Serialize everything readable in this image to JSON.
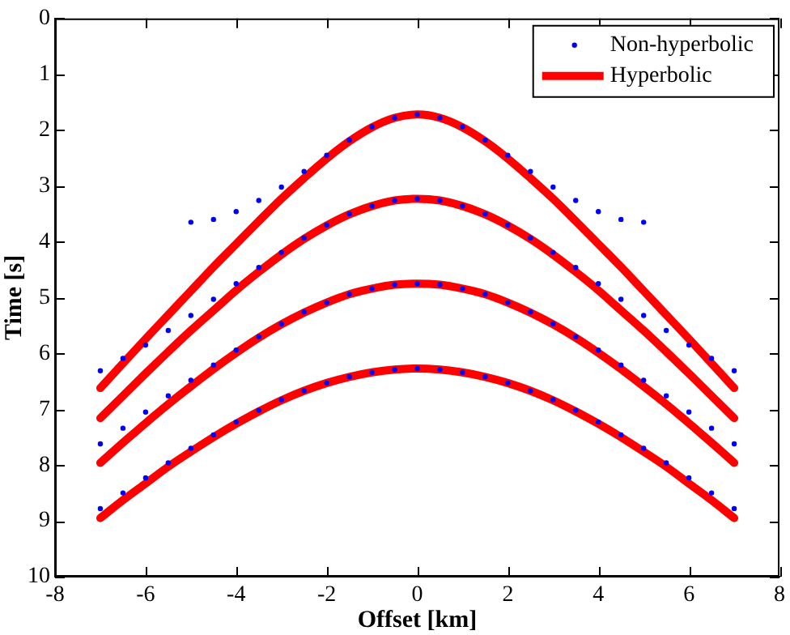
{
  "chart_data": {
    "type": "line",
    "xlabel": "Offset [km]",
    "ylabel": "Time [s]",
    "xlim": [
      -8,
      8
    ],
    "xticks": [
      -8,
      -6,
      -4,
      -2,
      0,
      2,
      4,
      6,
      8
    ],
    "ylim": [
      10,
      0
    ],
    "yticks": [
      0,
      1,
      2,
      3,
      4,
      5,
      6,
      7,
      8,
      9,
      10
    ],
    "grid": false,
    "legend": "top right",
    "series": [
      {
        "name": "Non-hyperbolic",
        "type": "scatter",
        "marker": "circle",
        "color": "#0000ff",
        "x": [
          -5,
          -4.5,
          -4,
          -3.5,
          -3,
          -2.5,
          -2,
          -1.5,
          -1,
          -0.5,
          0,
          0.5,
          1,
          1.5,
          2,
          2.5,
          3,
          3.5,
          4,
          4.5,
          5
        ],
        "values": [
          3.65,
          3.6,
          3.46,
          3.26,
          3.02,
          2.74,
          2.45,
          2.18,
          1.94,
          1.78,
          1.72,
          1.78,
          1.94,
          2.18,
          2.45,
          2.74,
          3.02,
          3.26,
          3.46,
          3.6,
          3.65
        ]
      },
      {
        "type": "scatter",
        "marker": "circle",
        "color": "#0000ff",
        "x": [
          -7,
          -6.5,
          -6,
          -5.5,
          -5,
          -4.5,
          -4,
          -3.5,
          -3,
          -2.5,
          -2,
          -1.5,
          -1,
          -0.5,
          0,
          0.5,
          1,
          1.5,
          2,
          2.5,
          3,
          3.5,
          4,
          4.5,
          5,
          5.5,
          6,
          6.5,
          7
        ],
        "values": [
          6.31,
          6.09,
          5.85,
          5.59,
          5.32,
          5.03,
          4.75,
          4.46,
          4.19,
          3.93,
          3.7,
          3.5,
          3.36,
          3.26,
          3.23,
          3.26,
          3.36,
          3.5,
          3.7,
          3.93,
          4.19,
          4.46,
          4.75,
          5.03,
          5.32,
          5.59,
          5.85,
          6.09,
          6.31
        ]
      },
      {
        "type": "scatter",
        "marker": "circle",
        "color": "#0000ff",
        "x": [
          -7,
          -6.5,
          -6,
          -5.5,
          -5,
          -4.5,
          -4,
          -3.5,
          -3,
          -2.5,
          -2,
          -1.5,
          -1,
          -0.5,
          0,
          0.5,
          1,
          1.5,
          2,
          2.5,
          3,
          3.5,
          4,
          4.5,
          5,
          5.5,
          6,
          6.5,
          7
        ],
        "values": [
          7.62,
          7.34,
          7.05,
          6.76,
          6.48,
          6.21,
          5.94,
          5.7,
          5.47,
          5.26,
          5.09,
          4.94,
          4.84,
          4.77,
          4.75,
          4.77,
          4.84,
          4.94,
          5.09,
          5.26,
          5.47,
          5.7,
          5.94,
          6.21,
          6.48,
          6.76,
          7.05,
          7.34,
          7.62
        ]
      },
      {
        "type": "scatter",
        "marker": "circle",
        "color": "#0000ff",
        "x": [
          -7,
          -6.5,
          -6,
          -5.5,
          -5,
          -4.5,
          -4,
          -3.5,
          -3,
          -2.5,
          -2,
          -1.5,
          -1,
          -0.5,
          0,
          0.5,
          1,
          1.5,
          2,
          2.5,
          3,
          3.5,
          4,
          4.5,
          5,
          5.5,
          6,
          6.5,
          7
        ],
        "values": [
          8.78,
          8.5,
          8.23,
          7.96,
          7.7,
          7.46,
          7.23,
          7.02,
          6.83,
          6.67,
          6.53,
          6.42,
          6.34,
          6.29,
          6.27,
          6.29,
          6.34,
          6.42,
          6.53,
          6.67,
          6.83,
          7.02,
          7.23,
          7.46,
          7.7,
          7.96,
          8.23,
          8.5,
          8.78
        ]
      },
      {
        "name": "Hyperbolic",
        "type": "line",
        "marker": "none",
        "line_style": "solid",
        "color": "#ff0000",
        "x": [
          -7,
          -6.5,
          -6,
          -5.5,
          -5,
          -4.5,
          -4,
          -3.5,
          -3,
          -2.5,
          -2,
          -1.5,
          -1,
          -0.5,
          0,
          0.5,
          1,
          1.5,
          2,
          2.5,
          3,
          3.5,
          4,
          4.5,
          5,
          5.5,
          6,
          6.5,
          7
        ],
        "values": [
          6.62,
          6.18,
          5.74,
          5.31,
          4.88,
          4.45,
          4.04,
          3.63,
          3.23,
          2.86,
          2.51,
          2.2,
          1.95,
          1.78,
          1.72,
          1.78,
          1.95,
          2.2,
          2.51,
          2.86,
          3.23,
          3.63,
          4.04,
          4.45,
          4.88,
          5.31,
          5.74,
          6.18,
          6.62
        ]
      },
      {
        "type": "line",
        "marker": "none",
        "line_style": "solid",
        "color": "#ff0000",
        "x": [
          -7,
          -6.5,
          -6,
          -5.5,
          -5,
          -4.5,
          -4,
          -3.5,
          -3,
          -2.5,
          -2,
          -1.5,
          -1,
          -0.5,
          0,
          0.5,
          1,
          1.5,
          2,
          2.5,
          3,
          3.5,
          4,
          4.5,
          5,
          5.5,
          6,
          6.5,
          7
        ],
        "values": [
          7.16,
          6.76,
          6.36,
          5.97,
          5.59,
          5.23,
          4.87,
          4.54,
          4.23,
          3.95,
          3.71,
          3.51,
          3.36,
          3.26,
          3.23,
          3.26,
          3.36,
          3.51,
          3.71,
          3.95,
          4.23,
          4.54,
          4.87,
          5.23,
          5.59,
          5.97,
          6.36,
          6.76,
          7.16
        ]
      },
      {
        "type": "line",
        "marker": "none",
        "line_style": "solid",
        "color": "#ff0000",
        "x": [
          -7,
          -6.5,
          -6,
          -5.5,
          -5,
          -4.5,
          -4,
          -3.5,
          -3,
          -2.5,
          -2,
          -1.5,
          -1,
          -0.5,
          0,
          0.5,
          1,
          1.5,
          2,
          2.5,
          3,
          3.5,
          4,
          4.5,
          5,
          5.5,
          6,
          6.5,
          7
        ],
        "values": [
          7.96,
          7.6,
          7.25,
          6.91,
          6.59,
          6.28,
          5.99,
          5.72,
          5.48,
          5.27,
          5.09,
          4.94,
          4.84,
          4.77,
          4.75,
          4.77,
          4.84,
          4.94,
          5.09,
          5.27,
          5.48,
          5.72,
          5.99,
          6.28,
          6.59,
          6.91,
          7.25,
          7.6,
          7.96
        ]
      },
      {
        "type": "line",
        "marker": "none",
        "line_style": "solid",
        "color": "#ff0000",
        "x": [
          -7,
          -6.5,
          -6,
          -5.5,
          -5,
          -4.5,
          -4,
          -3.5,
          -3,
          -2.5,
          -2,
          -1.5,
          -1,
          -0.5,
          0,
          0.5,
          1,
          1.5,
          2,
          2.5,
          3,
          3.5,
          4,
          4.5,
          5,
          5.5,
          6,
          6.5,
          7
        ],
        "values": [
          8.95,
          8.63,
          8.33,
          8.03,
          7.76,
          7.5,
          7.26,
          7.04,
          6.84,
          6.67,
          6.53,
          6.42,
          6.34,
          6.29,
          6.27,
          6.29,
          6.34,
          6.42,
          6.53,
          6.67,
          6.84,
          7.04,
          7.26,
          7.5,
          7.76,
          8.03,
          8.33,
          8.63,
          8.95
        ]
      }
    ]
  }
}
